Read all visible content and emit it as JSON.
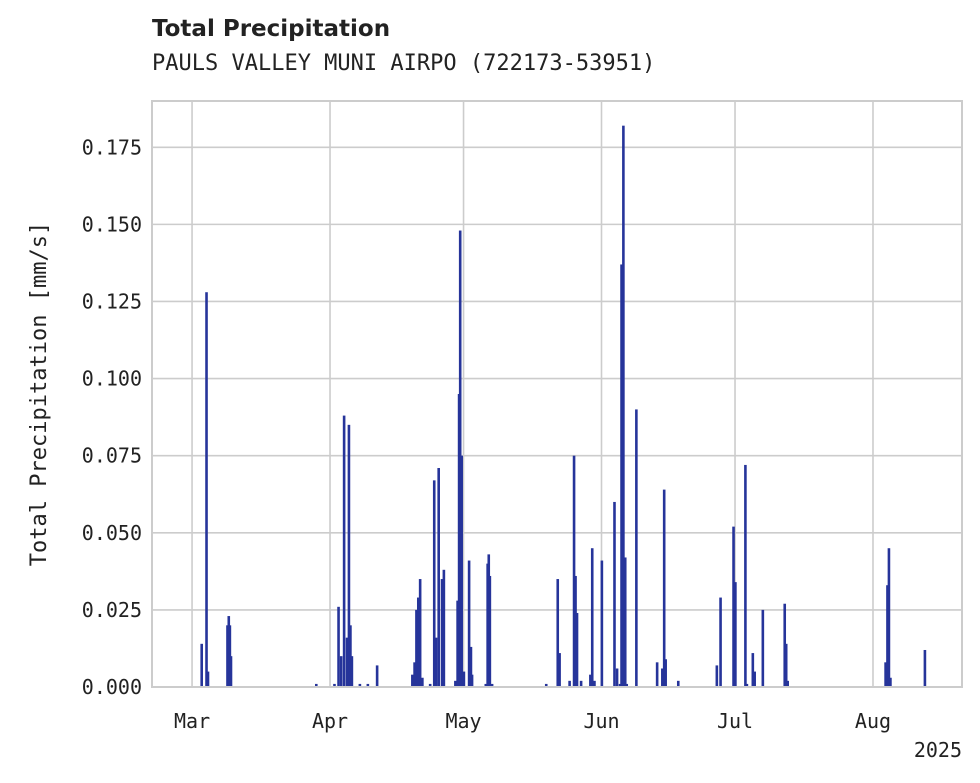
{
  "chart_data": {
    "type": "bar",
    "title": "Total Precipitation",
    "subtitle": "PAULS VALLEY MUNI AIRPO (722173-53951)",
    "ylabel": "Total Precipitation [mm/s]",
    "xlabel": "",
    "year_label": "2025",
    "ylim": [
      0,
      0.19
    ],
    "xlim": [
      "2025-02-20",
      "2025-08-21"
    ],
    "grid": true,
    "series_color": "#26349a",
    "x_ticks": [
      {
        "date": "2025-03-01",
        "label": "Mar"
      },
      {
        "date": "2025-04-01",
        "label": "Apr"
      },
      {
        "date": "2025-05-01",
        "label": "May"
      },
      {
        "date": "2025-06-01",
        "label": "Jun"
      },
      {
        "date": "2025-07-01",
        "label": "Jul"
      },
      {
        "date": "2025-08-01",
        "label": "Aug"
      }
    ],
    "y_ticks": [
      {
        "value": 0.0,
        "label": "0.000"
      },
      {
        "value": 0.025,
        "label": "0.025"
      },
      {
        "value": 0.05,
        "label": "0.050"
      },
      {
        "value": 0.075,
        "label": "0.075"
      },
      {
        "value": 0.1,
        "label": "0.100"
      },
      {
        "value": 0.125,
        "label": "0.125"
      },
      {
        "value": 0.15,
        "label": "0.150"
      },
      {
        "value": 0.175,
        "label": "0.175"
      }
    ],
    "points": [
      [
        "2025-03-03T04:00",
        0.014
      ],
      [
        "2025-03-04T06:00",
        0.128
      ],
      [
        "2025-03-04T14:00",
        0.005
      ],
      [
        "2025-03-08T23:00",
        0.02
      ],
      [
        "2025-03-09T06:00",
        0.023
      ],
      [
        "2025-03-09T12:00",
        0.02
      ],
      [
        "2025-03-09T18:00",
        0.01
      ],
      [
        "2025-04-07T17:00",
        0.001
      ],
      [
        "2025-04-09T12:00",
        0.001
      ],
      [
        "2025-04-11T14:00",
        0.007
      ],
      [
        "2025-03-28T22:00",
        0.001
      ],
      [
        "2025-04-02T00:00",
        0.001
      ],
      [
        "2025-04-02T22:00",
        0.026
      ],
      [
        "2025-04-03T12:00",
        0.01
      ],
      [
        "2025-04-04T04:00",
        0.088
      ],
      [
        "2025-04-04T20:00",
        0.016
      ],
      [
        "2025-04-05T06:00",
        0.085
      ],
      [
        "2025-04-05T14:00",
        0.02
      ],
      [
        "2025-04-05T22:00",
        0.01
      ],
      [
        "2025-04-19T12:00",
        0.004
      ],
      [
        "2025-04-20T00:00",
        0.008
      ],
      [
        "2025-04-20T10:00",
        0.025
      ],
      [
        "2025-04-20T20:00",
        0.029
      ],
      [
        "2025-04-21T06:00",
        0.035
      ],
      [
        "2025-04-21T18:00",
        0.003
      ],
      [
        "2025-04-23T12:00",
        0.001
      ],
      [
        "2025-04-24T10:00",
        0.067
      ],
      [
        "2025-04-24T20:00",
        0.016
      ],
      [
        "2025-04-25T10:00",
        0.071
      ],
      [
        "2025-04-26T04:00",
        0.035
      ],
      [
        "2025-04-26T14:00",
        0.038
      ],
      [
        "2025-04-29T04:00",
        0.002
      ],
      [
        "2025-04-29T16:00",
        0.028
      ],
      [
        "2025-04-30T00:00",
        0.095
      ],
      [
        "2025-04-30T06:00",
        0.148
      ],
      [
        "2025-04-30T14:00",
        0.075
      ],
      [
        "2025-05-01T02:00",
        0.005
      ],
      [
        "2025-05-02T06:00",
        0.041
      ],
      [
        "2025-05-02T16:00",
        0.013
      ],
      [
        "2025-05-02T22:00",
        0.004
      ],
      [
        "2025-05-06T00:00",
        0.001
      ],
      [
        "2025-05-06T10:00",
        0.04
      ],
      [
        "2025-05-06T16:00",
        0.043
      ],
      [
        "2025-05-06T22:00",
        0.036
      ],
      [
        "2025-05-07T10:00",
        0.001
      ],
      [
        "2025-05-19T14:00",
        0.001
      ],
      [
        "2025-05-22T04:00",
        0.035
      ],
      [
        "2025-05-22T14:00",
        0.011
      ],
      [
        "2025-05-24T20:00",
        0.002
      ],
      [
        "2025-05-25T20:00",
        0.075
      ],
      [
        "2025-05-26T04:00",
        0.036
      ],
      [
        "2025-05-26T12:00",
        0.024
      ],
      [
        "2025-05-27T10:00",
        0.002
      ],
      [
        "2025-05-29T12:00",
        0.004
      ],
      [
        "2025-05-29T22:00",
        0.045
      ],
      [
        "2025-05-30T10:00",
        0.002
      ],
      [
        "2025-06-01T02:00",
        0.041
      ],
      [
        "2025-06-03T22:00",
        0.06
      ],
      [
        "2025-06-04T12:00",
        0.006
      ],
      [
        "2025-06-05T04:00",
        0.001
      ],
      [
        "2025-06-05T12:00",
        0.137
      ],
      [
        "2025-06-05T22:00",
        0.182
      ],
      [
        "2025-06-06T08:00",
        0.042
      ],
      [
        "2025-06-06T16:00",
        0.001
      ],
      [
        "2025-06-08T20:00",
        0.09
      ],
      [
        "2025-06-13T12:00",
        0.008
      ],
      [
        "2025-06-14T16:00",
        0.006
      ],
      [
        "2025-06-15T02:00",
        0.064
      ],
      [
        "2025-06-15T10:00",
        0.009
      ],
      [
        "2025-06-18T06:00",
        0.002
      ],
      [
        "2025-06-26T22:00",
        0.007
      ],
      [
        "2025-06-27T18:00",
        0.029
      ],
      [
        "2025-06-30T16:00",
        0.052
      ],
      [
        "2025-07-01T02:00",
        0.034
      ],
      [
        "2025-07-03T08:00",
        0.072
      ],
      [
        "2025-07-03T16:00",
        0.001
      ],
      [
        "2025-07-05T00:00",
        0.011
      ],
      [
        "2025-07-05T10:00",
        0.005
      ],
      [
        "2025-07-07T06:00",
        0.025
      ],
      [
        "2025-07-12T04:00",
        0.027
      ],
      [
        "2025-07-12T12:00",
        0.014
      ],
      [
        "2025-07-12T20:00",
        0.002
      ],
      [
        "2025-08-03T20:00",
        0.008
      ],
      [
        "2025-08-04T06:00",
        0.033
      ],
      [
        "2025-08-04T14:00",
        0.045
      ],
      [
        "2025-08-04T22:00",
        0.003
      ],
      [
        "2025-08-12T16:00",
        0.012
      ]
    ]
  }
}
